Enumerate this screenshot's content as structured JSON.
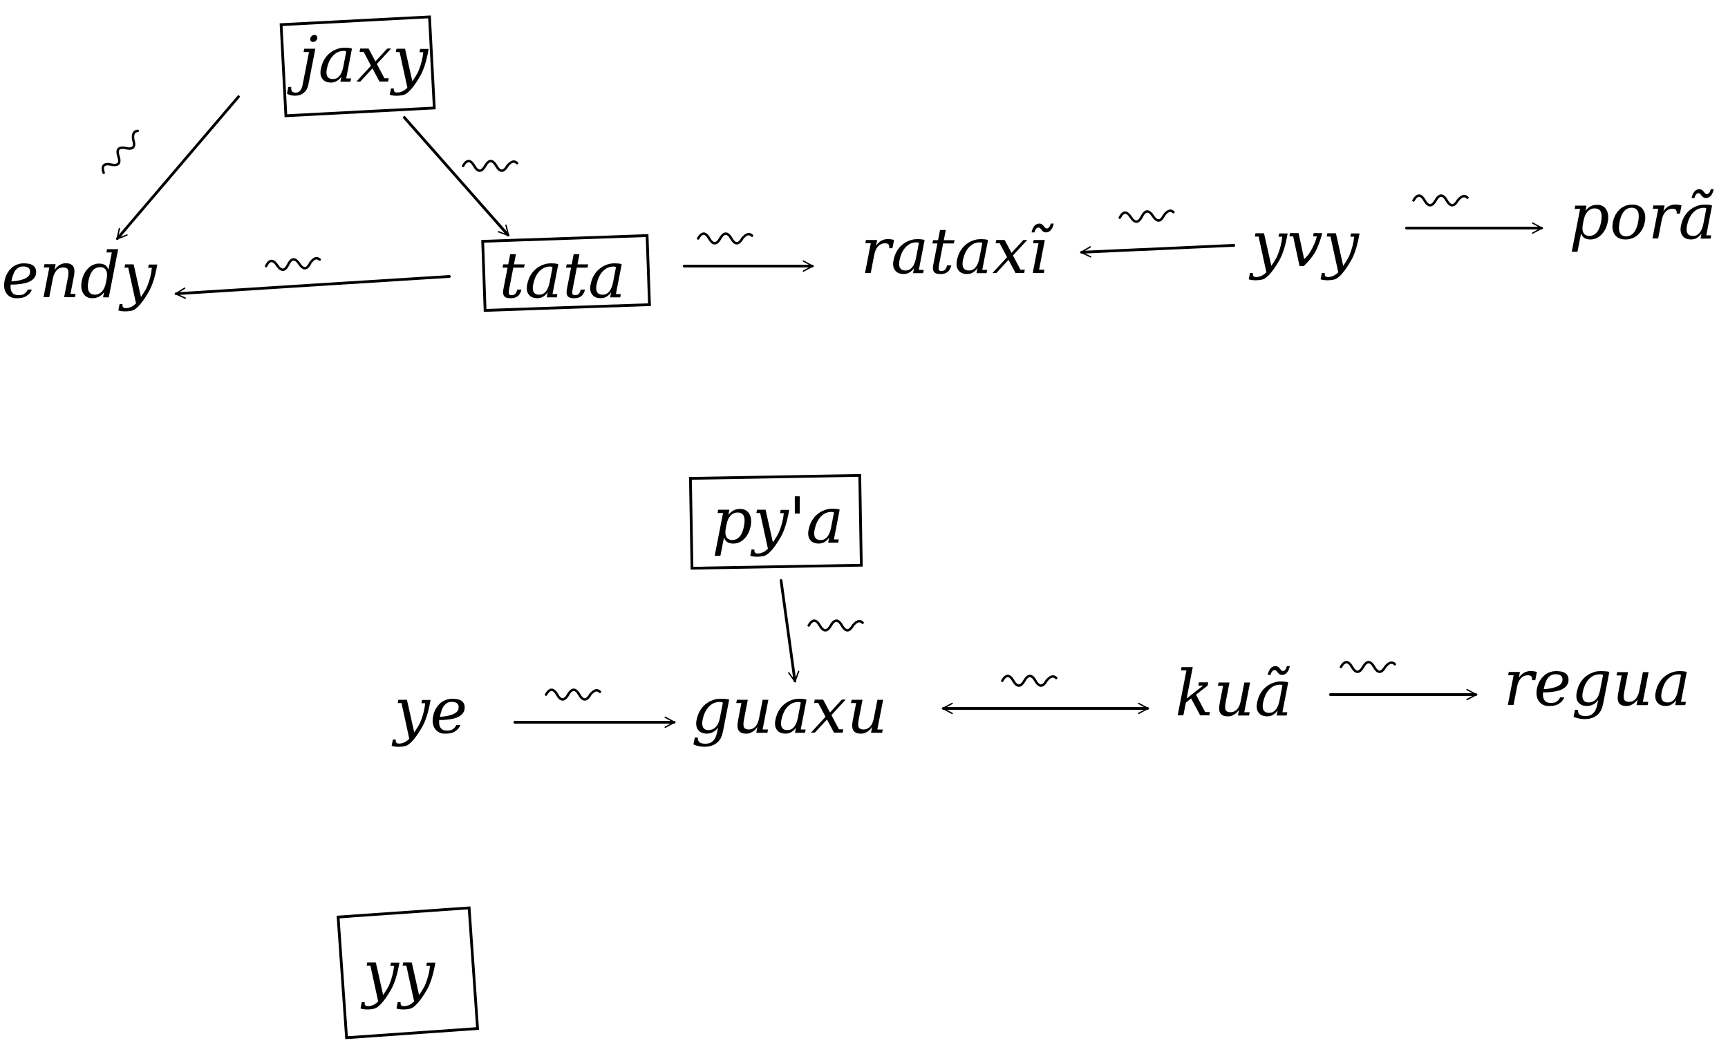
{
  "diagram": {
    "nodes": [
      {
        "id": "jaxy",
        "label": "jaxy",
        "boxed": true
      },
      {
        "id": "endy",
        "label": "endy",
        "boxed": false
      },
      {
        "id": "tata",
        "label": "tata",
        "boxed": true
      },
      {
        "id": "rataxi",
        "label": "rataxĩ",
        "boxed": false
      },
      {
        "id": "yvy",
        "label": "yvy",
        "boxed": false
      },
      {
        "id": "pora",
        "label": "porã",
        "boxed": false
      },
      {
        "id": "pya",
        "label": "py'a",
        "boxed": true
      },
      {
        "id": "ye",
        "label": "ye",
        "boxed": false
      },
      {
        "id": "guaxu",
        "label": "guaxu",
        "boxed": false
      },
      {
        "id": "kua",
        "label": "kuã",
        "boxed": false
      },
      {
        "id": "regua",
        "label": "regua",
        "boxed": false
      },
      {
        "id": "yy",
        "label": "yy",
        "boxed": true
      }
    ],
    "edges": [
      {
        "from": "jaxy",
        "to": "endy",
        "direction": "forward"
      },
      {
        "from": "jaxy",
        "to": "tata",
        "direction": "forward"
      },
      {
        "from": "tata",
        "to": "endy",
        "direction": "forward"
      },
      {
        "from": "tata",
        "to": "rataxi",
        "direction": "forward"
      },
      {
        "from": "yvy",
        "to": "rataxi",
        "direction": "forward"
      },
      {
        "from": "yvy",
        "to": "pora",
        "direction": "forward"
      },
      {
        "from": "pya",
        "to": "guaxu",
        "direction": "forward"
      },
      {
        "from": "ye",
        "to": "guaxu",
        "direction": "forward"
      },
      {
        "from": "guaxu",
        "to": "kua",
        "direction": "both"
      },
      {
        "from": "kua",
        "to": "regua",
        "direction": "forward"
      }
    ]
  }
}
